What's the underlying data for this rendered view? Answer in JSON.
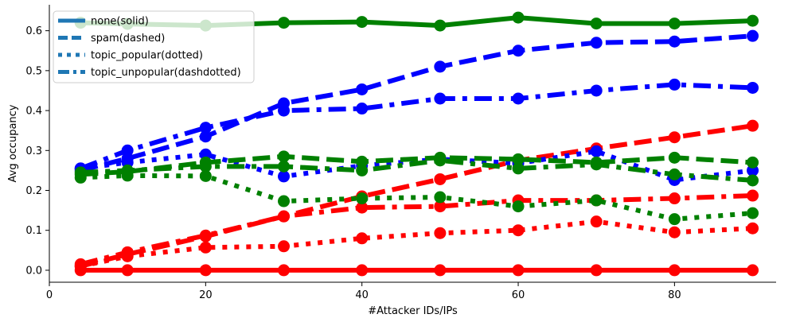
{
  "chart_data": {
    "type": "line",
    "xlabel": "#Attacker IDs/IPs",
    "ylabel": "Avg occupancy",
    "xlim": [
      0,
      93
    ],
    "ylim": [
      -0.03,
      0.665
    ],
    "xticks": [
      0,
      20,
      40,
      60,
      80
    ],
    "yticks": [
      0.0,
      0.1,
      0.2,
      0.3,
      0.4,
      0.5,
      0.6
    ],
    "x": [
      4,
      10,
      20,
      30,
      40,
      50,
      60,
      70,
      80,
      90
    ],
    "legend": {
      "position": "top-left",
      "color": "#1f77b4",
      "entries": [
        {
          "label": "none(solid)",
          "style": "solid"
        },
        {
          "label": "spam(dashed)",
          "style": "dashed"
        },
        {
          "label": "topic_popular(dotted)",
          "style": "dotted"
        },
        {
          "label": "topic_unpopular(dashdotted)",
          "style": "dashdot"
        }
      ]
    },
    "series": [
      {
        "color": "#ff0000",
        "style": "solid",
        "values": [
          0.0,
          0.0,
          0.0,
          0.0,
          0.0,
          0.0,
          0.0,
          0.0,
          0.0,
          0.0
        ]
      },
      {
        "color": "#ff0000",
        "style": "dashed",
        "values": [
          0.01,
          0.04,
          0.085,
          0.135,
          0.185,
          0.228,
          0.275,
          0.305,
          0.333,
          0.362
        ]
      },
      {
        "color": "#ff0000",
        "style": "dotted",
        "values": [
          0.01,
          0.035,
          0.057,
          0.06,
          0.08,
          0.093,
          0.1,
          0.122,
          0.095,
          0.105
        ]
      },
      {
        "color": "#ff0000",
        "style": "dashdot",
        "values": [
          0.015,
          0.045,
          0.087,
          0.135,
          0.157,
          0.16,
          0.175,
          0.175,
          0.18,
          0.187
        ]
      },
      {
        "color": "#0000ff",
        "style": "dashed",
        "values": [
          0.25,
          0.28,
          0.335,
          0.418,
          0.453,
          0.51,
          0.55,
          0.57,
          0.573,
          0.587
        ]
      },
      {
        "color": "#0000ff",
        "style": "dashdot",
        "values": [
          0.255,
          0.3,
          0.357,
          0.4,
          0.405,
          0.43,
          0.43,
          0.45,
          0.465,
          0.457
        ]
      },
      {
        "color": "#0000ff",
        "style": "dotted",
        "values": [
          0.255,
          0.27,
          0.29,
          0.235,
          0.262,
          0.278,
          0.268,
          0.298,
          0.226,
          0.25
        ]
      },
      {
        "color": "#008000",
        "style": "solid",
        "values": [
          0.62,
          0.617,
          0.613,
          0.62,
          0.622,
          0.613,
          0.633,
          0.618,
          0.618,
          0.625
        ]
      },
      {
        "color": "#008000",
        "style": "dashed",
        "values": [
          0.24,
          0.247,
          0.27,
          0.285,
          0.272,
          0.282,
          0.278,
          0.27,
          0.282,
          0.27
        ]
      },
      {
        "color": "#008000",
        "style": "dashdot",
        "values": [
          0.245,
          0.25,
          0.26,
          0.26,
          0.25,
          0.275,
          0.255,
          0.265,
          0.24,
          0.225
        ]
      },
      {
        "color": "#008000",
        "style": "dotted",
        "values": [
          0.232,
          0.237,
          0.236,
          0.173,
          0.18,
          0.183,
          0.16,
          0.175,
          0.128,
          0.143
        ]
      }
    ]
  }
}
